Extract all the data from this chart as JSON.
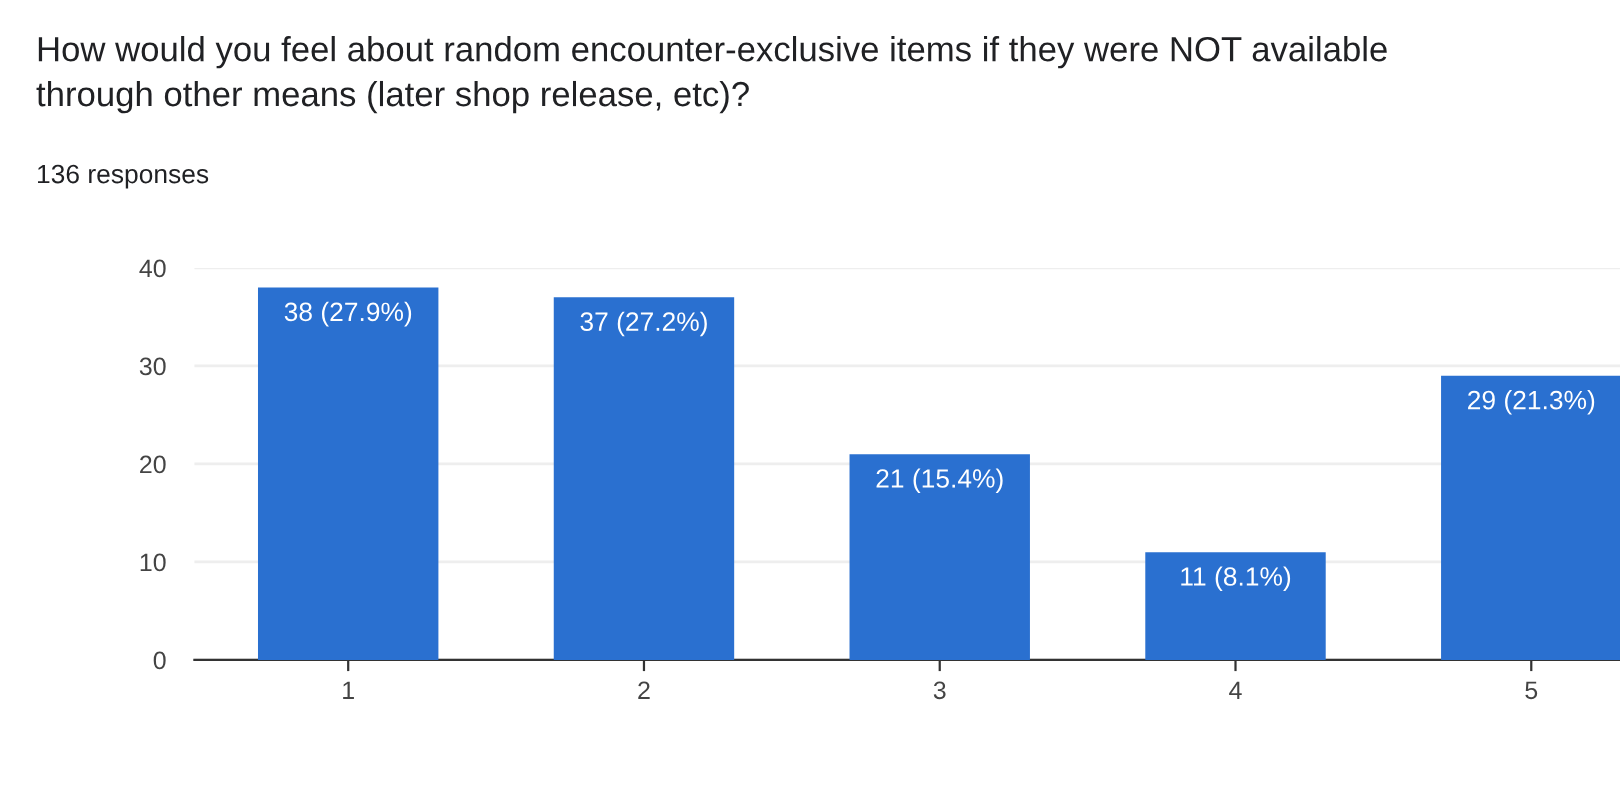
{
  "chart_data": {
    "type": "bar",
    "title": "How would you feel about random encounter-exclusive items if they were NOT available\nthrough other means (later shop release, etc)?",
    "subtitle": "136 responses",
    "categories": [
      "1",
      "2",
      "3",
      "4",
      "5"
    ],
    "values": [
      38,
      37,
      21,
      11,
      29
    ],
    "color": "#2a70d0",
    "value_labels": [
      "38 (27.9%)",
      "37 (27.2%)",
      "21 (15.4%)",
      "11 (8.1%)",
      "29 (21.3%)"
    ],
    "ylim": [
      0,
      40
    ],
    "yticks": [
      0,
      10,
      20,
      30,
      40
    ],
    "grid": "y"
  }
}
